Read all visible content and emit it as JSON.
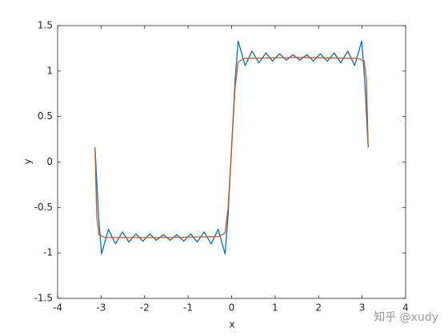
{
  "chart_data": {
    "type": "line",
    "xlabel": "x",
    "ylabel": "y",
    "xlim": [
      -4,
      4
    ],
    "ylim": [
      -1.5,
      1.5
    ],
    "xticks": [
      -4,
      -3,
      -2,
      -1,
      0,
      1,
      2,
      3,
      4
    ],
    "yticks": [
      -1.5,
      -1,
      -0.5,
      0,
      0.5,
      1,
      1.5
    ],
    "grid": false,
    "watermark": "知乎 @xudy",
    "series": [
      {
        "color": "#0072BD",
        "x": [
          -3.14,
          -3.06,
          -2.99,
          -2.83,
          -2.67,
          -2.51,
          -2.36,
          -2.2,
          -2.04,
          -1.88,
          -1.73,
          -1.57,
          -1.41,
          -1.26,
          -1.1,
          -0.94,
          -0.79,
          -0.63,
          -0.47,
          -0.31,
          -0.15,
          -0.08,
          0,
          0.08,
          0.15,
          0.31,
          0.47,
          0.63,
          0.79,
          0.94,
          1.1,
          1.26,
          1.41,
          1.57,
          1.73,
          1.88,
          2.04,
          2.2,
          2.36,
          2.51,
          2.67,
          2.83,
          2.99,
          3.06,
          3.14
        ],
        "values": [
          0.16,
          -0.58,
          -1.01,
          -0.74,
          -0.9,
          -0.77,
          -0.88,
          -0.79,
          -0.87,
          -0.79,
          -0.86,
          -0.8,
          -0.86,
          -0.8,
          -0.87,
          -0.79,
          -0.88,
          -0.77,
          -0.9,
          -0.74,
          -1.01,
          -0.58,
          0.16,
          0.9,
          1.33,
          1.06,
          1.22,
          1.09,
          1.2,
          1.11,
          1.19,
          1.12,
          1.18,
          1.12,
          1.18,
          1.11,
          1.19,
          1.11,
          1.2,
          1.09,
          1.22,
          1.06,
          1.33,
          0.9,
          0.16
        ]
      },
      {
        "color": "#D95319",
        "x": [
          -3.14,
          -3.1,
          -3.05,
          -2.9,
          -1.5,
          -0.3,
          -0.15,
          -0.08,
          0,
          0.08,
          0.15,
          0.3,
          1.5,
          2.9,
          3.05,
          3.1,
          3.14
        ],
        "values": [
          0.16,
          -0.6,
          -0.8,
          -0.83,
          -0.83,
          -0.82,
          -0.78,
          -0.5,
          0.16,
          0.82,
          1.1,
          1.14,
          1.15,
          1.14,
          1.11,
          0.9,
          0.16
        ]
      }
    ]
  }
}
